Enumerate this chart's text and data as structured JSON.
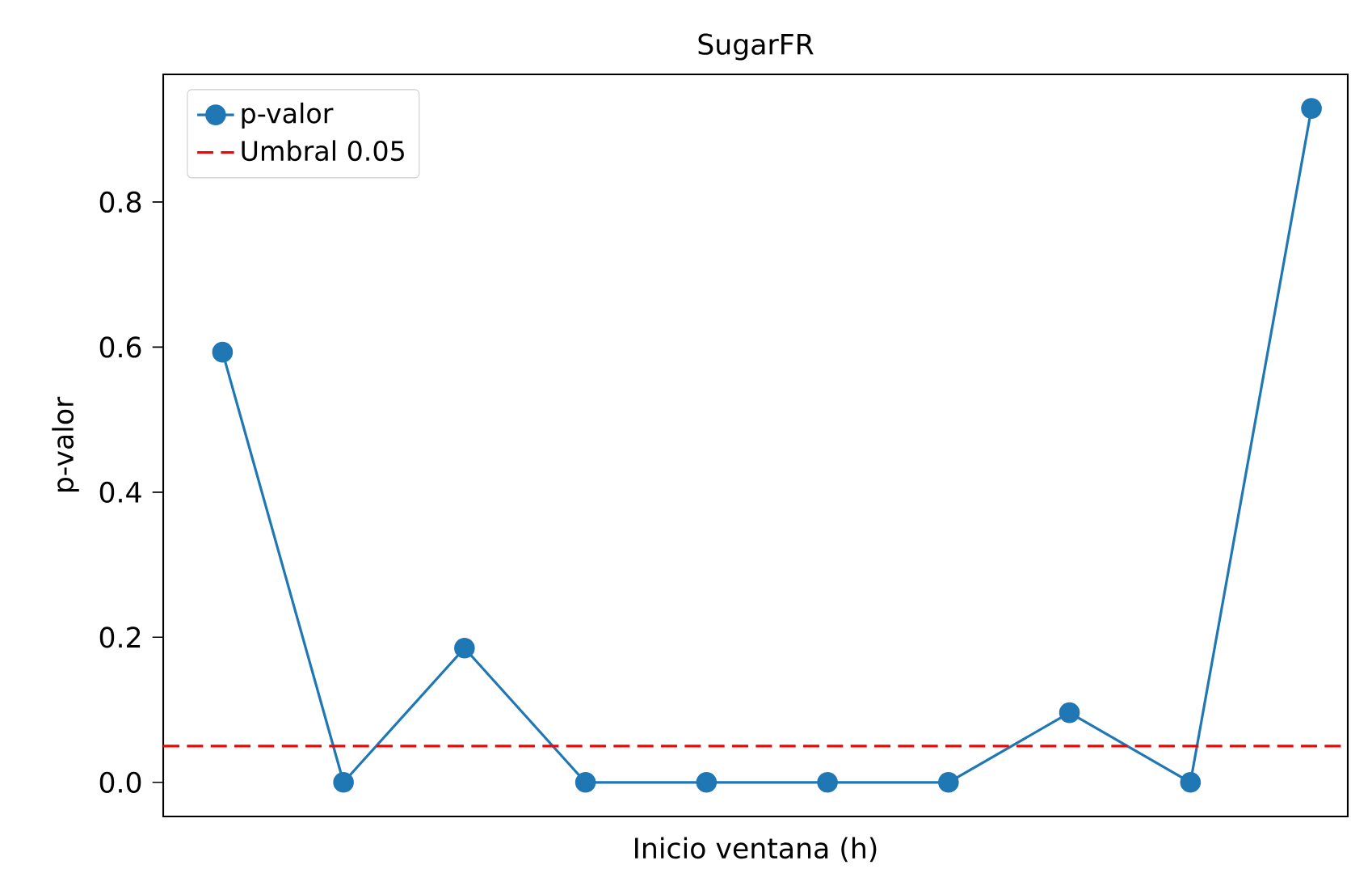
{
  "chart_data": {
    "type": "line",
    "title": "SugarFR",
    "xlabel": "Inicio ventana (h)",
    "ylabel": "p-valor",
    "categories": [
      null,
      null,
      null,
      null,
      null,
      null,
      null,
      null,
      null,
      null
    ],
    "series": [
      {
        "name": "p-valor",
        "color": "#1f77b4",
        "values": [
          0.593,
          0.0,
          0.185,
          0.0,
          0.0,
          0.0,
          0.0,
          0.096,
          0.0,
          0.929
        ]
      }
    ],
    "ref_lines": [
      {
        "axis": "y",
        "value": 0.05,
        "label": "Umbral 0.05",
        "color": "#ff0000",
        "line_style": "dashed"
      }
    ],
    "ylim": [
      -0.047,
      0.976
    ],
    "yticks": [
      {
        "value": 0,
        "label": "0.0"
      },
      0.2,
      0.4,
      0.6,
      0.8
    ],
    "marker": "circle",
    "line_style": "solid",
    "legend": "top left",
    "grid": false
  }
}
